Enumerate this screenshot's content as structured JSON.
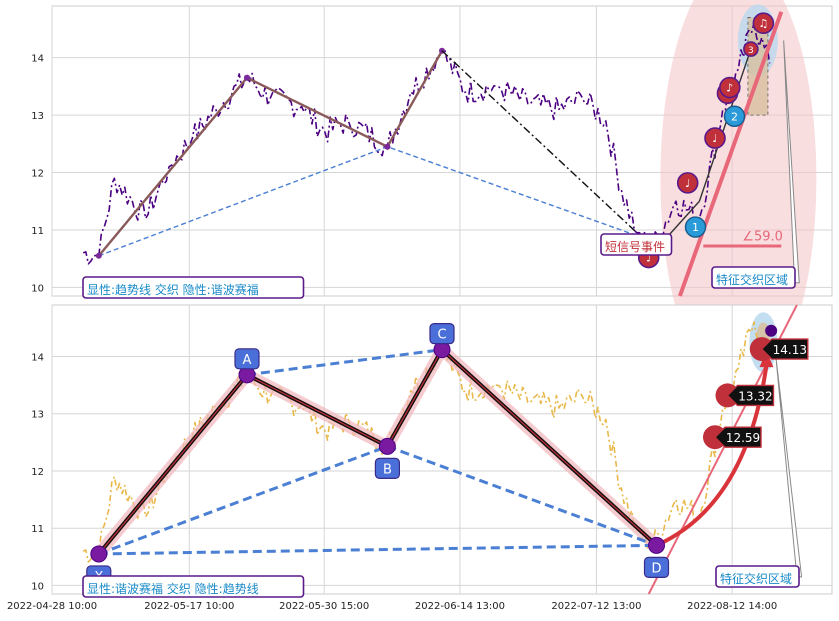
{
  "chart_data": [
    {
      "type": "line",
      "panel": "top",
      "ylim": [
        9.85,
        14.9
      ],
      "yticks": [
        10,
        11,
        12,
        13,
        14
      ],
      "xlim": [
        0,
        100
      ],
      "legend_text": "显性:趋势线 交织 隐性:谐波赛福",
      "price_color": "#4b0082",
      "trend_segments": [
        {
          "from": [
            6.0,
            10.55
          ],
          "to": [
            25.0,
            13.65
          ]
        },
        {
          "from": [
            25.0,
            13.65
          ],
          "to": [
            43.0,
            12.45
          ]
        },
        {
          "from": [
            43.0,
            12.45
          ],
          "to": [
            50.0,
            14.12
          ]
        }
      ],
      "dashdot_segment": {
        "from": [
          50.0,
          14.12
        ],
        "to": [
          75.0,
          10.95
        ]
      },
      "dashed_segment": [
        [
          6.0,
          10.55
        ],
        [
          43.0,
          12.45
        ],
        [
          75.0,
          10.9
        ]
      ],
      "signals": [
        {
          "x": 76.5,
          "y": 10.52,
          "label": "♩"
        },
        {
          "x": 81.5,
          "y": 11.82,
          "label": "♩"
        },
        {
          "x": 85.0,
          "y": 12.6,
          "label": "♩"
        },
        {
          "x": 86.6,
          "y": 13.38,
          "label": "♪"
        },
        {
          "x": 86.9,
          "y": 13.48,
          "label": "♪"
        },
        {
          "x": 89.6,
          "y": 14.15,
          "label": "3"
        },
        {
          "x": 91.2,
          "y": 14.6,
          "label": "♫"
        }
      ],
      "counts": [
        {
          "x": 82.5,
          "y": 11.05,
          "label": "1"
        },
        {
          "x": 87.5,
          "y": 12.98,
          "label": "2"
        }
      ],
      "event_label": "短信号事件",
      "angle_label": "∠59.0",
      "region_label": "特征交织区域"
    },
    {
      "type": "line",
      "panel": "bottom",
      "ylim": [
        9.85,
        14.9
      ],
      "yticks": [
        10,
        11,
        12,
        13,
        14
      ],
      "xlim": [
        0,
        100
      ],
      "legend_text": "显性:谐波赛福 交织 隐性:趋势线",
      "price_color": "#e8b84a",
      "points": [
        {
          "name": "X",
          "x": 6.0,
          "y": 10.55
        },
        {
          "name": "A",
          "x": 25.0,
          "y": 13.68
        },
        {
          "name": "B",
          "x": 43.0,
          "y": 12.43
        },
        {
          "name": "C",
          "x": 50.0,
          "y": 14.12
        },
        {
          "name": "D",
          "x": 77.5,
          "y": 10.7
        }
      ],
      "value_labels": [
        {
          "x": 85.0,
          "y": 12.59,
          "label": "12.59"
        },
        {
          "x": 86.6,
          "y": 13.32,
          "label": "13.32"
        },
        {
          "x": 91.0,
          "y": 14.13,
          "label": "14.13"
        }
      ],
      "region_label": "特征交织区域"
    }
  ],
  "x_tick_labels": [
    "2022-04-28 10:00",
    "2022-05-17 10:00",
    "2022-05-30 15:00",
    "2022-06-14 13:00",
    "2022-07-12 13:00",
    "2022-08-12 14:00"
  ],
  "x_tick_positions": [
    0,
    17.6,
    34.9,
    52.3,
    69.8,
    87.2
  ]
}
